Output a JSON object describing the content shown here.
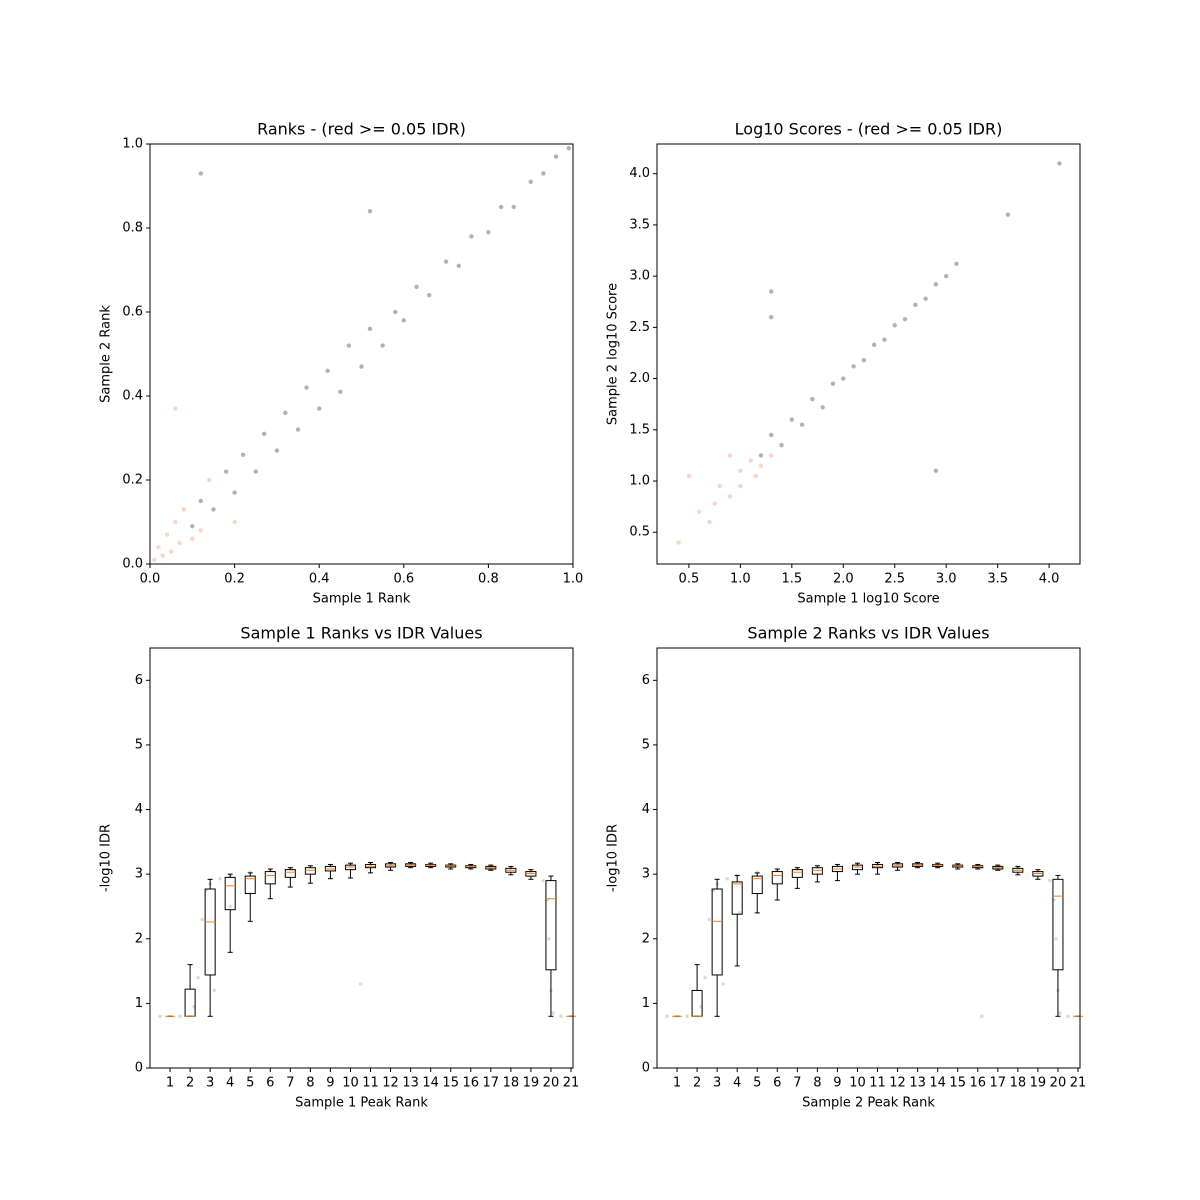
{
  "chart_data": [
    {
      "type": "scatter",
      "title": "Ranks - (red >= 0.05 IDR)",
      "xlabel": "Sample 1 Rank",
      "ylabel": "Sample 2 Rank",
      "xlim": [
        0,
        1
      ],
      "ylim": [
        0,
        1
      ],
      "xticks": [
        {
          "value": 0,
          "label": "0.0"
        },
        0.2,
        0.4,
        0.6,
        0.8,
        {
          "value": 1,
          "label": "1.0"
        }
      ],
      "yticks": [
        {
          "value": 0,
          "label": "0.0"
        },
        0.2,
        0.4,
        0.6,
        0.8,
        {
          "value": 1,
          "label": "1.0"
        }
      ],
      "series": [
        {
          "color": "#000000",
          "alpha": 0.3,
          "x": [
            0.1,
            0.12,
            0.15,
            0.18,
            0.2,
            0.22,
            0.25,
            0.27,
            0.3,
            0.32,
            0.35,
            0.37,
            0.4,
            0.42,
            0.45,
            0.47,
            0.5,
            0.52,
            0.55,
            0.58,
            0.6,
            0.63,
            0.66,
            0.7,
            0.73,
            0.76,
            0.8,
            0.83,
            0.86,
            0.9,
            0.93,
            0.96,
            0.99,
            0.12,
            0.52
          ],
          "values": [
            0.09,
            0.15,
            0.13,
            0.22,
            0.17,
            0.26,
            0.22,
            0.31,
            0.27,
            0.36,
            0.32,
            0.42,
            0.37,
            0.46,
            0.41,
            0.52,
            0.47,
            0.56,
            0.52,
            0.6,
            0.58,
            0.66,
            0.64,
            0.72,
            0.71,
            0.78,
            0.79,
            0.85,
            0.85,
            0.91,
            0.93,
            0.97,
            0.99,
            0.93,
            0.84
          ]
        },
        {
          "color": "#f9a88f",
          "alpha": 0.5,
          "x": [
            0.01,
            0.02,
            0.03,
            0.04,
            0.05,
            0.06,
            0.07,
            0.08,
            0.1,
            0.12,
            0.14,
            0.2,
            0.06
          ],
          "values": [
            0.01,
            0.04,
            0.02,
            0.07,
            0.03,
            0.1,
            0.05,
            0.13,
            0.06,
            0.08,
            0.2,
            0.1,
            0.37
          ]
        }
      ]
    },
    {
      "type": "scatter",
      "title": "Log10 Scores - (red >= 0.05 IDR)",
      "xlabel": "Sample 1 log10 Score",
      "ylabel": "Sample 2 log10 Score",
      "xlim": [
        0.19,
        4.3
      ],
      "ylim": [
        0.19,
        4.29
      ],
      "xticks": [
        0.5,
        {
          "value": 1,
          "label": "1.0"
        },
        1.5,
        {
          "value": 2,
          "label": "2.0"
        },
        2.5,
        {
          "value": 3,
          "label": "3.0"
        },
        3.5,
        {
          "value": 4,
          "label": "4.0"
        }
      ],
      "yticks": [
        0.5,
        {
          "value": 1,
          "label": "1.0"
        },
        1.5,
        {
          "value": 2,
          "label": "2.0"
        },
        2.5,
        {
          "value": 3,
          "label": "3.0"
        },
        3.5,
        {
          "value": 4,
          "label": "4.0"
        }
      ],
      "series": [
        {
          "color": "#000000",
          "alpha": 0.3,
          "x": [
            1.2,
            1.3,
            1.4,
            1.5,
            1.6,
            1.7,
            1.8,
            1.9,
            2.0,
            2.1,
            2.2,
            2.3,
            2.4,
            2.5,
            2.6,
            2.7,
            2.8,
            2.9,
            3.0,
            3.1,
            1.3,
            1.3,
            2.9,
            4.1,
            3.6
          ],
          "values": [
            1.25,
            1.45,
            1.35,
            1.6,
            1.55,
            1.8,
            1.72,
            1.95,
            2.0,
            2.12,
            2.18,
            2.33,
            2.38,
            2.52,
            2.58,
            2.72,
            2.78,
            2.92,
            3.0,
            3.12,
            2.85,
            2.6,
            1.1,
            4.1,
            3.6
          ]
        },
        {
          "color": "#f9a88f",
          "alpha": 0.5,
          "x": [
            0.4,
            0.6,
            0.7,
            0.8,
            0.9,
            1.0,
            1.0,
            1.1,
            1.15,
            1.2,
            0.5,
            0.75,
            1.3,
            0.9
          ],
          "values": [
            0.4,
            0.7,
            0.6,
            0.95,
            0.85,
            1.1,
            0.95,
            1.2,
            1.05,
            1.15,
            1.05,
            0.78,
            1.25,
            1.25
          ]
        }
      ]
    },
    {
      "type": "box",
      "title": "Sample 1 Ranks vs IDR Values",
      "xlabel": "Sample 1 Peak Rank",
      "ylabel": "-log10 IDR",
      "xlim": [
        0,
        21.1
      ],
      "ylim": [
        0,
        6.5
      ],
      "xticks": [
        1,
        2,
        3,
        4,
        5,
        6,
        7,
        8,
        9,
        10,
        11,
        12,
        13,
        14,
        15,
        16,
        17,
        18,
        19,
        20,
        21
      ],
      "yticks": [
        0,
        1,
        2,
        3,
        4,
        5,
        6
      ],
      "color": "#000000",
      "median_color": "#ff7f0e",
      "points": {
        "color": "#888888",
        "alpha": 0.3,
        "x": [
          0.5,
          1.5,
          2.2,
          2.4,
          2.6,
          2.8,
          3.0,
          3.5,
          4,
          5,
          6,
          7,
          8,
          9,
          10,
          11,
          12,
          13,
          14,
          15,
          16,
          17,
          18,
          19,
          19.6,
          19.8,
          19.9,
          20.0,
          20.1,
          20.5,
          3.2,
          4,
          10.5
        ],
        "values": [
          0.8,
          0.8,
          0.95,
          1.4,
          2.3,
          2.75,
          2.85,
          2.93,
          2.98,
          3.03,
          3.06,
          3.09,
          3.11,
          3.13,
          3.14,
          3.15,
          3.16,
          3.16,
          3.15,
          3.14,
          3.13,
          3.12,
          3.09,
          3.03,
          2.9,
          2.6,
          2.0,
          1.2,
          0.85,
          0.8,
          1.2,
          2.5,
          1.3
        ]
      },
      "boxes": [
        {
          "whislo": 0.8,
          "q1": 0.8,
          "med": 0.8,
          "q3": 0.8,
          "whishi": 0.8
        },
        {
          "whislo": 0.8,
          "q1": 0.8,
          "med": 0.8,
          "q3": 1.22,
          "whishi": 1.6
        },
        {
          "whislo": 0.8,
          "q1": 1.44,
          "med": 2.26,
          "q3": 2.77,
          "whishi": 2.92
        },
        {
          "whislo": 1.79,
          "q1": 2.45,
          "med": 2.82,
          "q3": 2.95,
          "whishi": 3.0
        },
        {
          "whislo": 2.27,
          "q1": 2.7,
          "med": 2.93,
          "q3": 2.97,
          "whishi": 3.02
        },
        {
          "whislo": 2.62,
          "q1": 2.85,
          "med": 2.98,
          "q3": 3.04,
          "whishi": 3.08
        },
        {
          "whislo": 2.8,
          "q1": 2.95,
          "med": 3.03,
          "q3": 3.07,
          "whishi": 3.1
        },
        {
          "whislo": 2.86,
          "q1": 3.0,
          "med": 3.06,
          "q3": 3.1,
          "whishi": 3.13
        },
        {
          "whislo": 2.93,
          "q1": 3.05,
          "med": 3.08,
          "q3": 3.12,
          "whishi": 3.15
        },
        {
          "whislo": 2.94,
          "q1": 3.07,
          "med": 3.11,
          "q3": 3.14,
          "whishi": 3.17
        },
        {
          "whislo": 3.02,
          "q1": 3.1,
          "med": 3.12,
          "q3": 3.15,
          "whishi": 3.18
        },
        {
          "whislo": 3.06,
          "q1": 3.11,
          "med": 3.13,
          "q3": 3.16,
          "whishi": 3.18
        },
        {
          "whislo": 3.1,
          "q1": 3.12,
          "med": 3.14,
          "q3": 3.16,
          "whishi": 3.18
        },
        {
          "whislo": 3.1,
          "q1": 3.12,
          "med": 3.14,
          "q3": 3.15,
          "whishi": 3.17
        },
        {
          "whislo": 3.08,
          "q1": 3.11,
          "med": 3.13,
          "q3": 3.14,
          "whishi": 3.16
        },
        {
          "whislo": 3.08,
          "q1": 3.1,
          "med": 3.12,
          "q3": 3.13,
          "whishi": 3.15
        },
        {
          "whislo": 3.06,
          "q1": 3.08,
          "med": 3.1,
          "q3": 3.12,
          "whishi": 3.14
        },
        {
          "whislo": 2.99,
          "q1": 3.03,
          "med": 3.06,
          "q3": 3.09,
          "whishi": 3.12
        },
        {
          "whislo": 2.92,
          "q1": 2.97,
          "med": 3.01,
          "q3": 3.04,
          "whishi": 3.07
        },
        {
          "whislo": 0.8,
          "q1": 1.52,
          "med": 2.62,
          "q3": 2.9,
          "whishi": 2.97
        },
        {
          "whislo": 0.8,
          "q1": 0.8,
          "med": 0.8,
          "q3": 0.8,
          "whishi": 0.8
        }
      ]
    },
    {
      "type": "box",
      "title": "Sample 2 Ranks vs IDR Values",
      "xlabel": "Sample 2 Peak Rank",
      "ylabel": "-log10 IDR",
      "xlim": [
        0,
        21.1
      ],
      "ylim": [
        0,
        6.5
      ],
      "xticks": [
        1,
        2,
        3,
        4,
        5,
        6,
        7,
        8,
        9,
        10,
        11,
        12,
        13,
        14,
        15,
        16,
        17,
        18,
        19,
        20,
        21
      ],
      "yticks": [
        0,
        1,
        2,
        3,
        4,
        5,
        6
      ],
      "color": "#000000",
      "median_color": "#ff7f0e",
      "points": {
        "color": "#888888",
        "alpha": 0.3,
        "x": [
          0.5,
          1.5,
          2.2,
          2.4,
          2.6,
          2.8,
          3.0,
          3.5,
          4,
          5,
          6,
          7,
          8,
          9,
          10,
          11,
          12,
          13,
          14,
          15,
          16,
          17,
          18,
          19,
          19.6,
          19.8,
          19.9,
          20.0,
          20.1,
          20.5,
          3.3,
          4.1,
          16.2
        ],
        "values": [
          0.8,
          0.8,
          0.95,
          1.4,
          2.3,
          2.75,
          2.85,
          2.93,
          2.98,
          3.03,
          3.06,
          3.09,
          3.11,
          3.13,
          3.14,
          3.15,
          3.16,
          3.16,
          3.15,
          3.14,
          3.13,
          3.12,
          3.09,
          3.03,
          2.9,
          2.6,
          2.0,
          1.2,
          0.85,
          0.8,
          1.3,
          2.4,
          0.8
        ]
      },
      "boxes": [
        {
          "whislo": 0.8,
          "q1": 0.8,
          "med": 0.8,
          "q3": 0.8,
          "whishi": 0.8
        },
        {
          "whislo": 0.8,
          "q1": 0.8,
          "med": 0.8,
          "q3": 1.2,
          "whishi": 1.6
        },
        {
          "whislo": 0.8,
          "q1": 1.44,
          "med": 2.27,
          "q3": 2.77,
          "whishi": 2.92
        },
        {
          "whislo": 1.58,
          "q1": 2.38,
          "med": 2.85,
          "q3": 2.88,
          "whishi": 2.98
        },
        {
          "whislo": 2.4,
          "q1": 2.7,
          "med": 2.93,
          "q3": 2.97,
          "whishi": 3.02
        },
        {
          "whislo": 2.6,
          "q1": 2.85,
          "med": 2.98,
          "q3": 3.04,
          "whishi": 3.08
        },
        {
          "whislo": 2.78,
          "q1": 2.95,
          "med": 3.03,
          "q3": 3.07,
          "whishi": 3.1
        },
        {
          "whislo": 2.88,
          "q1": 3.0,
          "med": 3.06,
          "q3": 3.1,
          "whishi": 3.13
        },
        {
          "whislo": 2.9,
          "q1": 3.04,
          "med": 3.08,
          "q3": 3.12,
          "whishi": 3.15
        },
        {
          "whislo": 3.0,
          "q1": 3.07,
          "med": 3.11,
          "q3": 3.14,
          "whishi": 3.17
        },
        {
          "whislo": 3.0,
          "q1": 3.1,
          "med": 3.12,
          "q3": 3.15,
          "whishi": 3.18
        },
        {
          "whislo": 3.06,
          "q1": 3.11,
          "med": 3.13,
          "q3": 3.16,
          "whishi": 3.18
        },
        {
          "whislo": 3.1,
          "q1": 3.12,
          "med": 3.14,
          "q3": 3.16,
          "whishi": 3.18
        },
        {
          "whislo": 3.1,
          "q1": 3.12,
          "med": 3.14,
          "q3": 3.15,
          "whishi": 3.17
        },
        {
          "whislo": 3.08,
          "q1": 3.11,
          "med": 3.13,
          "q3": 3.14,
          "whishi": 3.16
        },
        {
          "whislo": 3.08,
          "q1": 3.1,
          "med": 3.12,
          "q3": 3.13,
          "whishi": 3.15
        },
        {
          "whislo": 3.06,
          "q1": 3.08,
          "med": 3.1,
          "q3": 3.12,
          "whishi": 3.14
        },
        {
          "whislo": 2.99,
          "q1": 3.03,
          "med": 3.06,
          "q3": 3.09,
          "whishi": 3.12
        },
        {
          "whislo": 2.92,
          "q1": 2.97,
          "med": 3.01,
          "q3": 3.04,
          "whishi": 3.07
        },
        {
          "whislo": 0.8,
          "q1": 1.52,
          "med": 2.66,
          "q3": 2.92,
          "whishi": 2.98
        },
        {
          "whislo": 0.8,
          "q1": 0.8,
          "med": 0.8,
          "q3": 0.8,
          "whishi": 0.8
        }
      ]
    }
  ]
}
